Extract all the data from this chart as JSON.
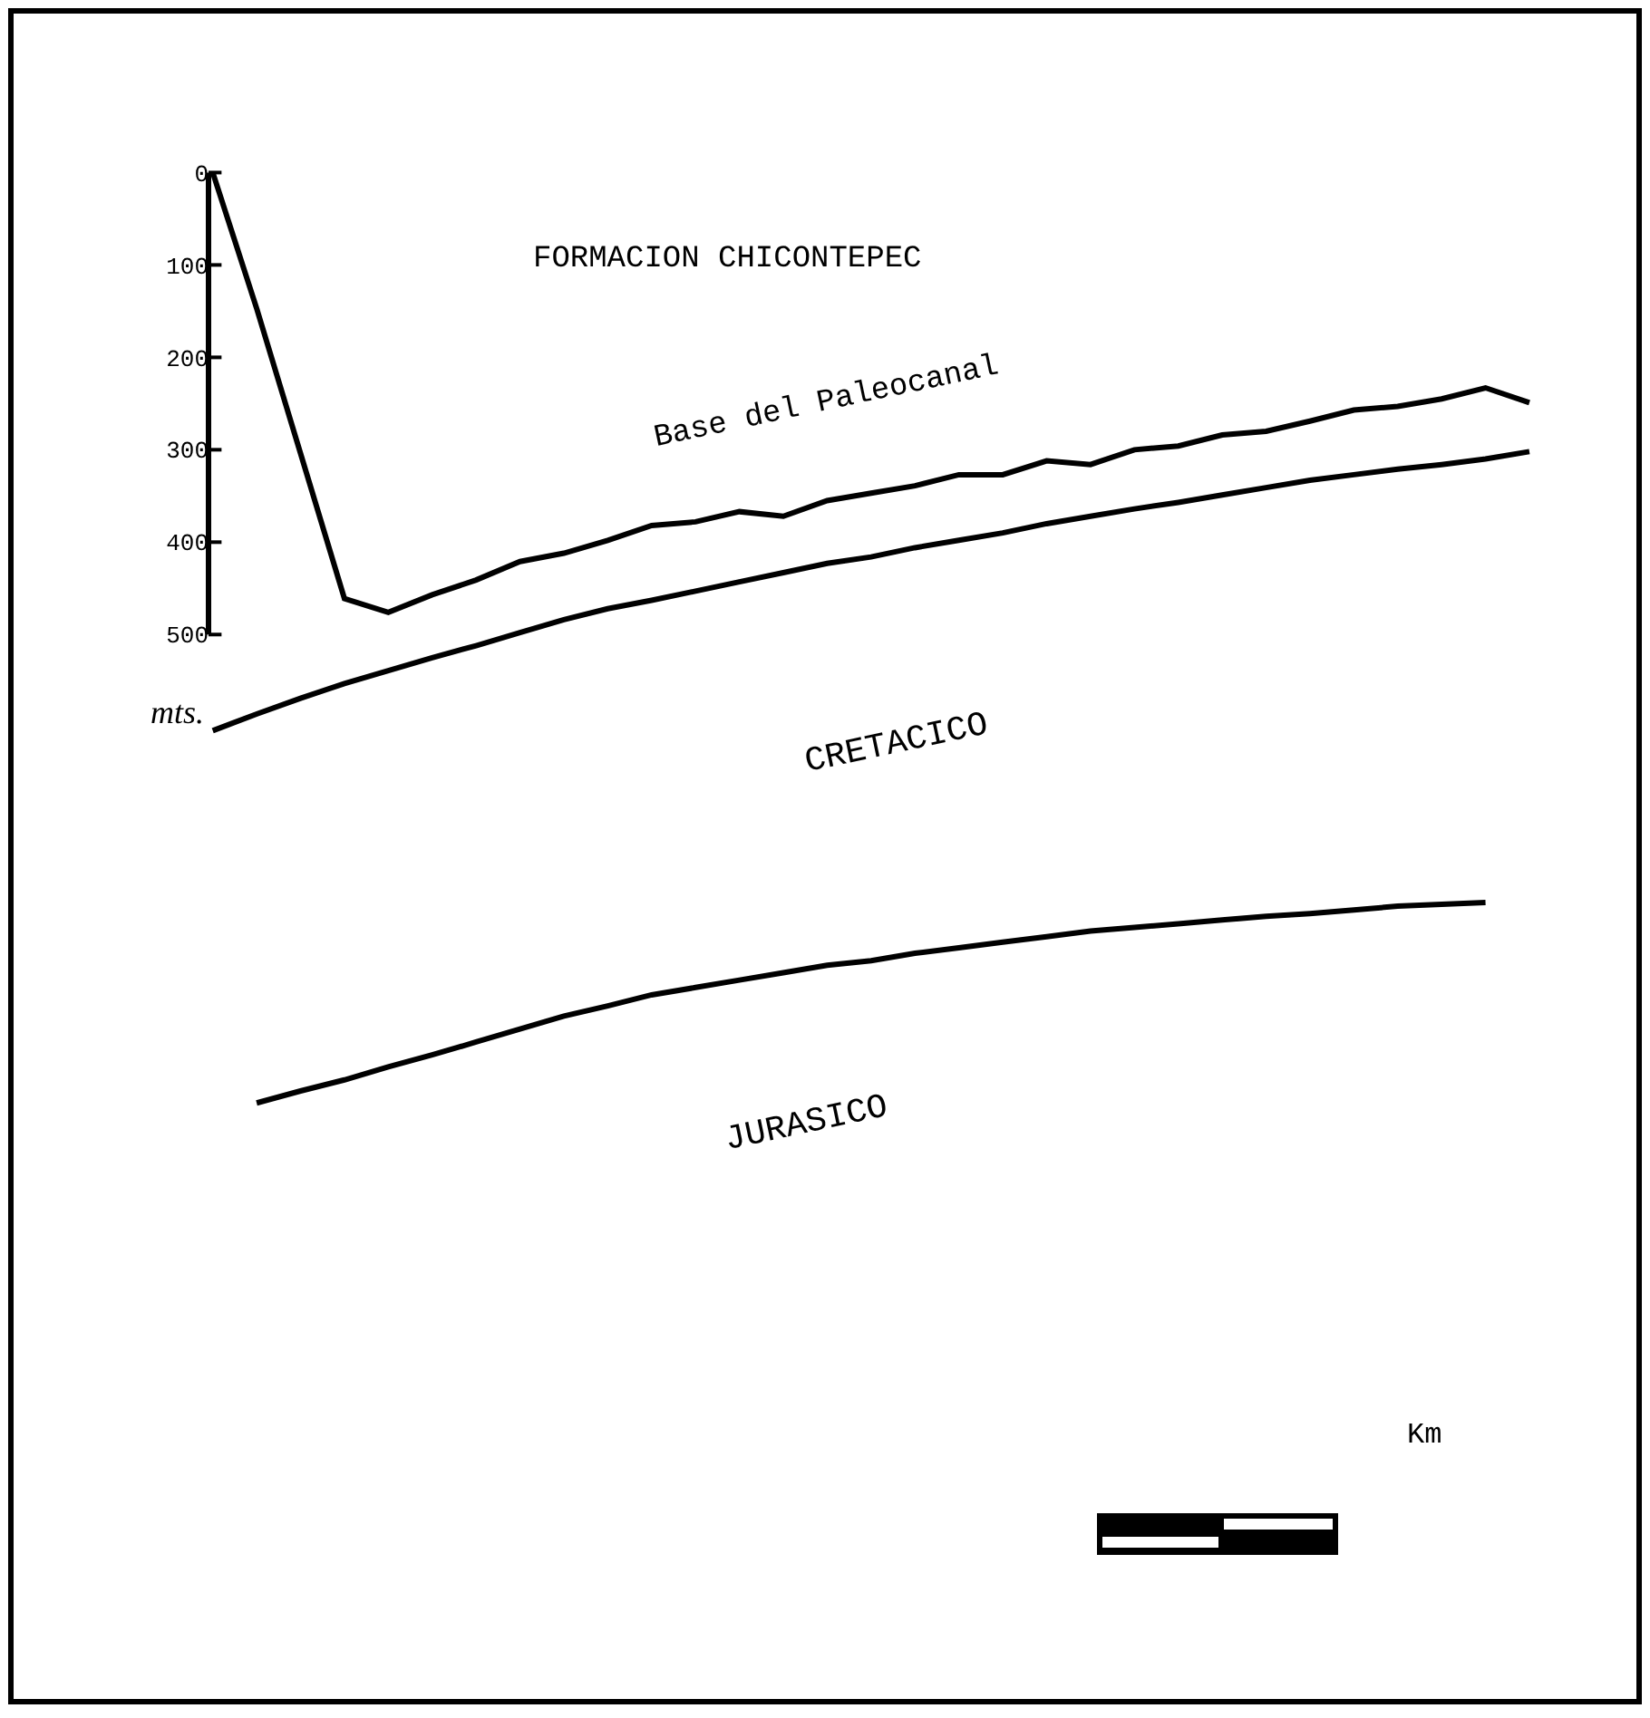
{
  "chart_data": {
    "type": "line",
    "title": "FORMACION CHICONTEPEC",
    "ylabel": "mts.",
    "categories": [
      null,
      null,
      null,
      null,
      null,
      null,
      null,
      null,
      null,
      null,
      null,
      null,
      null,
      null,
      null,
      null,
      null,
      null,
      null,
      null,
      null,
      null,
      null,
      null,
      null,
      null,
      null,
      null,
      null,
      null,
      null
    ],
    "series": [
      {
        "name": "Base del Paleocanal",
        "color": "#000000",
        "values": [
          0,
          147,
          304,
          461,
          476,
          457,
          441,
          421,
          412,
          398,
          382,
          378,
          367,
          372,
          355,
          347,
          339,
          327,
          327,
          312,
          316,
          300,
          296,
          284,
          280,
          269,
          257,
          253,
          245,
          233,
          249
        ]
      },
      {
        "color": "#000000",
        "values": [
          604,
          586,
          569,
          553,
          539,
          525,
          512,
          498,
          484,
          472,
          463,
          453,
          443,
          433,
          423,
          416,
          406,
          398,
          390,
          380,
          372,
          364,
          357,
          349,
          341,
          333,
          327,
          321,
          316,
          310,
          302
        ]
      },
      {
        "color": "#000000",
        "values": [
          null,
          1007,
          994,
          982,
          968,
          955,
          941,
          927,
          913,
          902,
          890,
          882,
          874,
          866,
          858,
          853,
          845,
          839,
          833,
          827,
          821,
          817,
          813,
          809,
          805,
          802,
          798,
          794,
          792,
          790,
          null
        ]
      }
    ],
    "ylim": [
      1655,
      -175
    ],
    "yticks": [
      0,
      100,
      200,
      300,
      400,
      500
    ],
    "annotations": [
      "CRETACICO",
      "JURASICO",
      "Km"
    ],
    "grid": false,
    "legend": false,
    "marker": "none",
    "line_style": "solid"
  }
}
